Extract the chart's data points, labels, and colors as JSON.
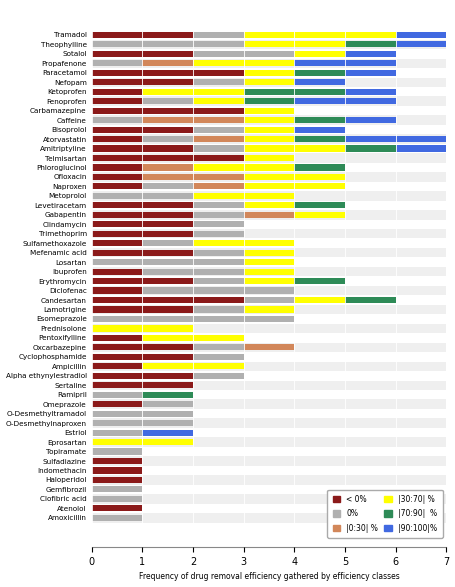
{
  "drugs": [
    "Tramadol",
    "Theophylline",
    "Sotalol",
    "Propafenone",
    "Paracetamol",
    "Nefopam",
    "Ketoprofen",
    "Fenoprofen",
    "Carbamazepine",
    "Caffeine",
    "Bisoprolol",
    "Atorvastatin",
    "Amitriptyline",
    "Telmisartan",
    "Phloroglucinol",
    "Ofloxacin",
    "Naproxen",
    "Metoprolol",
    "Levetiracetam",
    "Gabapentin",
    "Clindamycin",
    "Trimethoprim",
    "Sulfamethoxazole",
    "Mefenamic acid",
    "Losartan",
    "Ibuprofen",
    "Erythromycin",
    "Diclofenac",
    "Candesartan",
    "Lamotrigine",
    "Esomeprazole",
    "Prednisolone",
    "Pentoxifylline",
    "Oxcarbazepine",
    "Cyclophosphamide",
    "Ampicillin",
    "Alpha ethynylestradiol",
    "Sertaline",
    "Ramipril",
    "Omeprazole",
    "O-Desmethyltramadol",
    "O-Desmethylnaproxen",
    "Estriol",
    "Eprosartan",
    "Topiramate",
    "Sulfadiazine",
    "Indomethacin",
    "Haloperidol",
    "Gemfibrozil",
    "Clofibric acid",
    "Atenolol",
    "Amoxicillin"
  ],
  "segments": {
    "neg": [
      2,
      0,
      2,
      0,
      3,
      2,
      1,
      1,
      3,
      0,
      2,
      1,
      2,
      3,
      1,
      1,
      1,
      0,
      2,
      2,
      2,
      2,
      1,
      2,
      0,
      1,
      2,
      1,
      3,
      2,
      0,
      0,
      1,
      2,
      2,
      1,
      2,
      2,
      0,
      1,
      0,
      0,
      0,
      0,
      0,
      1,
      1,
      1,
      0,
      0,
      1,
      0
    ],
    "zero": [
      1,
      3,
      2,
      1,
      0,
      1,
      0,
      1,
      0,
      1,
      1,
      1,
      1,
      0,
      0,
      0,
      1,
      2,
      1,
      1,
      1,
      1,
      1,
      1,
      3,
      2,
      1,
      3,
      1,
      1,
      4,
      0,
      0,
      1,
      1,
      0,
      1,
      0,
      1,
      1,
      2,
      2,
      1,
      0,
      1,
      0,
      0,
      0,
      1,
      1,
      0,
      1
    ],
    "low": [
      0,
      0,
      0,
      1,
      0,
      0,
      0,
      0,
      0,
      2,
      0,
      1,
      0,
      0,
      1,
      2,
      1,
      0,
      0,
      1,
      0,
      0,
      0,
      0,
      0,
      0,
      0,
      0,
      0,
      0,
      0,
      0,
      0,
      1,
      0,
      0,
      0,
      0,
      0,
      0,
      0,
      0,
      0,
      0,
      0,
      0,
      0,
      0,
      0,
      0,
      0,
      0
    ],
    "mid": [
      3,
      2,
      1,
      2,
      1,
      1,
      2,
      1,
      1,
      1,
      1,
      1,
      2,
      1,
      2,
      2,
      2,
      2,
      1,
      1,
      0,
      0,
      2,
      1,
      1,
      1,
      1,
      0,
      1,
      1,
      0,
      2,
      2,
      0,
      0,
      2,
      0,
      0,
      0,
      0,
      0,
      0,
      0,
      2,
      0,
      0,
      0,
      0,
      0,
      0,
      0,
      0
    ],
    "high": [
      0,
      1,
      0,
      0,
      1,
      0,
      2,
      1,
      0,
      1,
      0,
      1,
      1,
      0,
      1,
      0,
      0,
      0,
      1,
      0,
      0,
      0,
      0,
      0,
      0,
      0,
      1,
      0,
      1,
      0,
      0,
      0,
      0,
      0,
      0,
      0,
      0,
      0,
      1,
      0,
      0,
      0,
      0,
      0,
      0,
      0,
      0,
      0,
      0,
      0,
      0,
      0
    ],
    "vhigh": [
      1,
      1,
      1,
      2,
      1,
      1,
      1,
      2,
      0,
      1,
      1,
      2,
      1,
      0,
      0,
      0,
      0,
      0,
      0,
      0,
      0,
      0,
      0,
      0,
      0,
      0,
      0,
      0,
      0,
      0,
      0,
      0,
      0,
      0,
      0,
      0,
      0,
      0,
      0,
      0,
      0,
      0,
      1,
      0,
      0,
      0,
      0,
      0,
      0,
      0,
      0,
      0
    ]
  },
  "colors": {
    "neg": "#8B1A1A",
    "zero": "#B0B0B0",
    "low": "#D2875A",
    "mid": "#FFFF00",
    "high": "#2E8B57",
    "vhigh": "#4169E1"
  },
  "legend_labels": [
    "< 0%",
    "0%",
    "|0:30| %",
    "|30:70| %",
    "|70:90|  %",
    "|90:100|%"
  ],
  "xlabel": "Frequency of drug removal efficiency gathered by efficiency classes",
  "xlim": [
    0,
    7
  ],
  "xticks": [
    0,
    1,
    2,
    3,
    4,
    5,
    6,
    7
  ],
  "bar_height": 0.65,
  "figsize": [
    4.55,
    5.87
  ],
  "dpi": 100
}
